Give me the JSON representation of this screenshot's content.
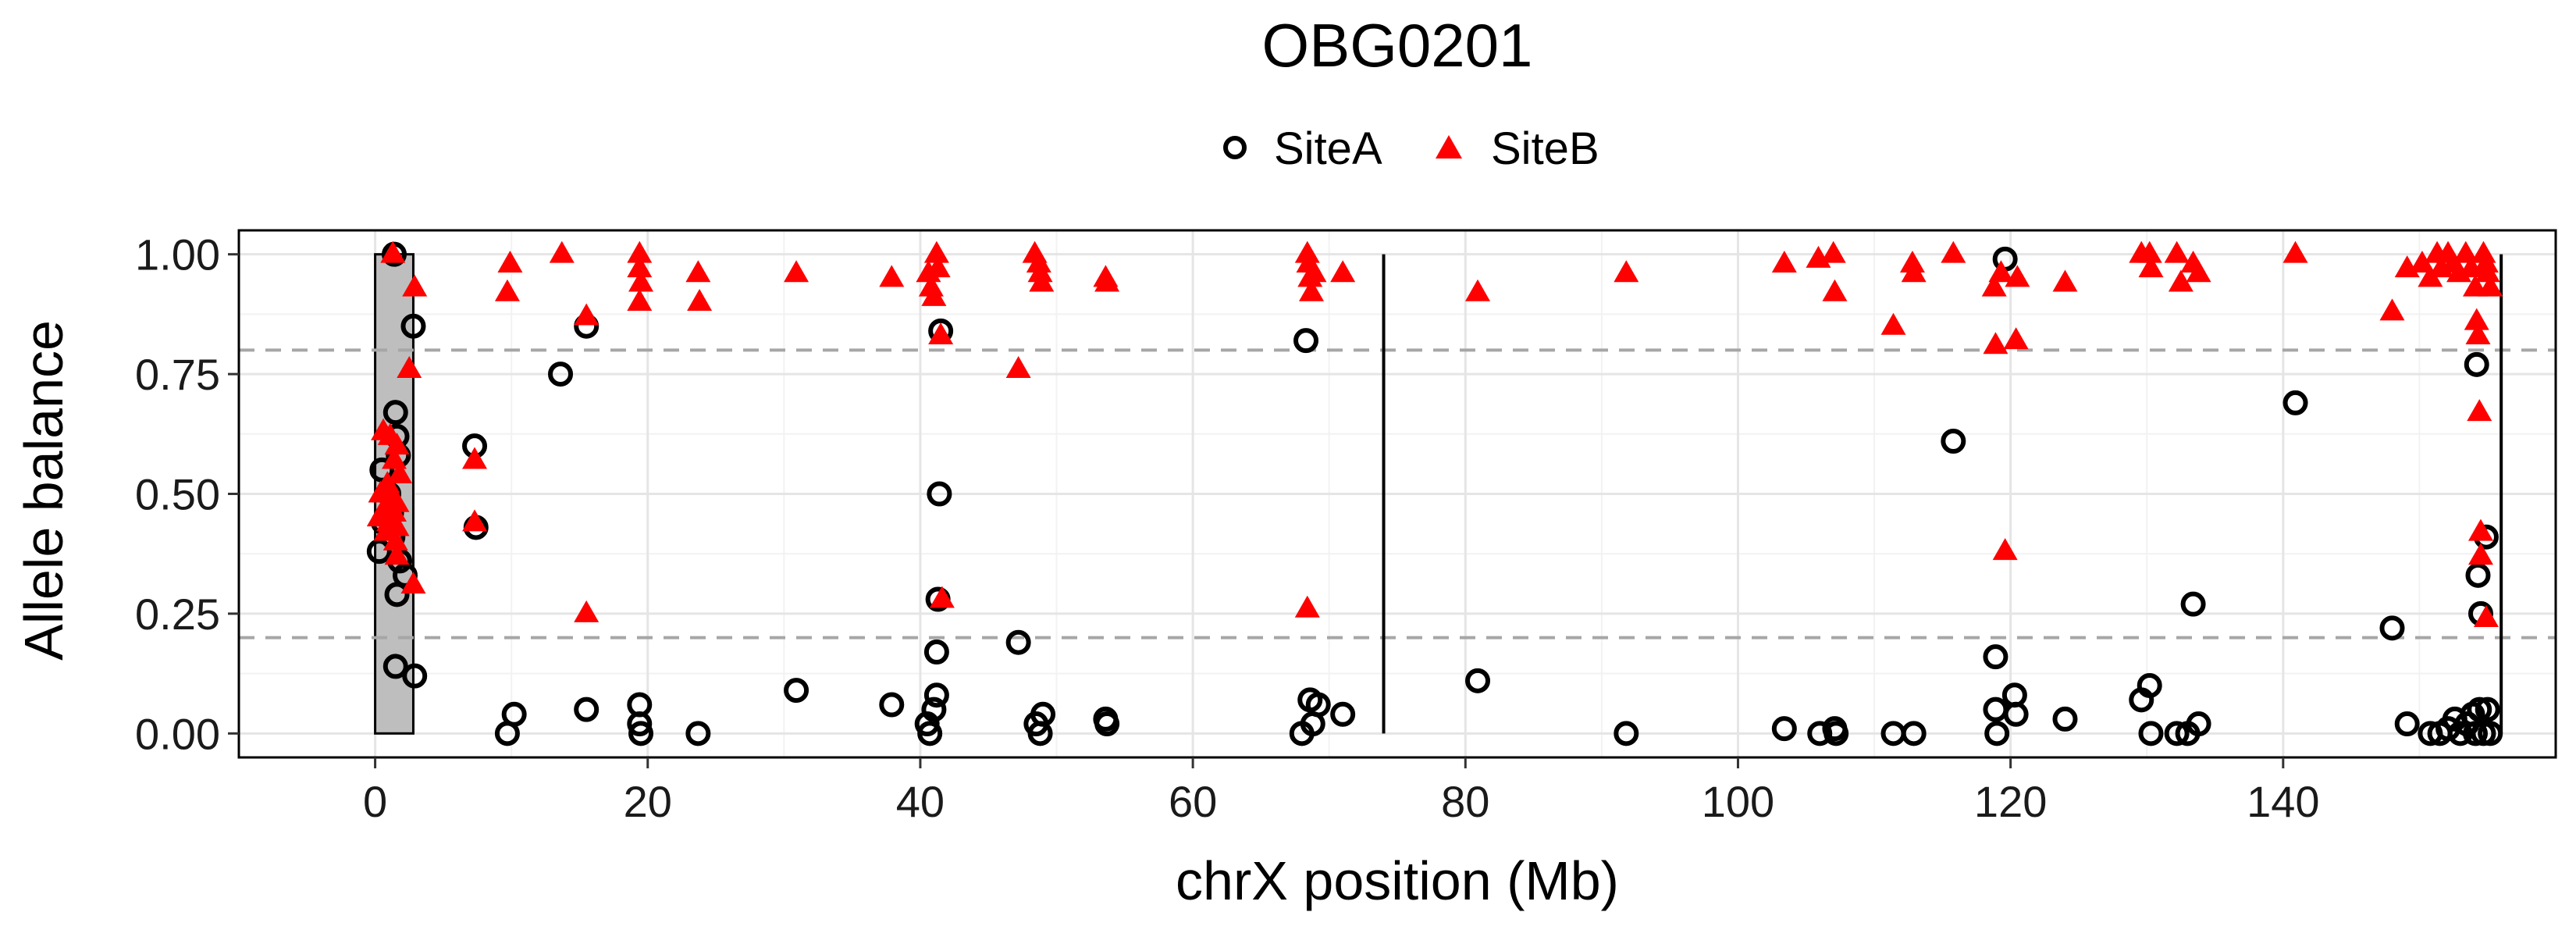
{
  "chart_data": {
    "type": "scatter",
    "title": "OBG0201",
    "xlabel": "chrX position (Mb)",
    "ylabel": "Allele balance",
    "xlim": [
      -10,
      160
    ],
    "ylim": [
      -0.05,
      1.05
    ],
    "xticks": [
      0,
      20,
      40,
      60,
      80,
      100,
      120,
      140
    ],
    "xtick_labels": [
      "0",
      "20",
      "40",
      "60",
      "80",
      "100",
      "120",
      "140"
    ],
    "yticks": [
      0,
      0.25,
      0.5,
      0.75,
      1.0
    ],
    "ytick_labels": [
      "0.00",
      "0.25",
      "0.50",
      "0.75",
      "1.00"
    ],
    "grid": true,
    "legend_position": "top",
    "colors": {
      "SiteA": "#000000",
      "SiteB": "#ff0000",
      "reference": "#a6a6a6",
      "region_fill": "#bebebe"
    },
    "reference_lines": {
      "horizontal": [
        0.2,
        0.8
      ],
      "vertical": [
        74,
        156
      ]
    },
    "shaded_region": {
      "x": [
        0,
        2.8
      ],
      "y": [
        0,
        1.0
      ]
    },
    "series": [
      {
        "name": "SiteA",
        "marker": "open-circle",
        "points": [
          [
            1.4,
            1.0
          ],
          [
            2.8,
            0.85
          ],
          [
            1.5,
            0.67
          ],
          [
            1.6,
            0.62
          ],
          [
            1.7,
            0.58
          ],
          [
            0.5,
            0.55
          ],
          [
            1.0,
            0.5
          ],
          [
            1.2,
            0.46
          ],
          [
            0.6,
            0.44
          ],
          [
            1.3,
            0.41
          ],
          [
            0.3,
            0.38
          ],
          [
            1.8,
            0.36
          ],
          [
            2.2,
            0.33
          ],
          [
            1.6,
            0.29
          ],
          [
            1.5,
            0.14
          ],
          [
            2.9,
            0.12
          ],
          [
            7.3,
            0.6
          ],
          [
            7.4,
            0.43
          ],
          [
            9.7,
            0.0
          ],
          [
            10.2,
            0.04
          ],
          [
            13.6,
            0.75
          ],
          [
            15.5,
            0.85
          ],
          [
            15.5,
            0.05
          ],
          [
            19.4,
            0.06
          ],
          [
            19.4,
            0.02
          ],
          [
            19.5,
            0.0
          ],
          [
            23.7,
            0.0
          ],
          [
            30.9,
            0.09
          ],
          [
            37.9,
            0.06
          ],
          [
            40.5,
            0.02
          ],
          [
            40.7,
            0.0
          ],
          [
            41.0,
            0.05
          ],
          [
            41.2,
            0.08
          ],
          [
            41.2,
            0.17
          ],
          [
            41.3,
            0.28
          ],
          [
            41.4,
            0.5
          ],
          [
            41.5,
            0.84
          ],
          [
            47.2,
            0.19
          ],
          [
            48.5,
            0.02
          ],
          [
            48.8,
            0.0
          ],
          [
            49.0,
            0.04
          ],
          [
            53.6,
            0.03
          ],
          [
            53.7,
            0.02
          ],
          [
            68.0,
            0.0
          ],
          [
            68.3,
            0.82
          ],
          [
            68.6,
            0.07
          ],
          [
            68.8,
            0.02
          ],
          [
            69.2,
            0.06
          ],
          [
            71.0,
            0.04
          ],
          [
            80.9,
            0.11
          ],
          [
            91.8,
            0.0
          ],
          [
            103.4,
            0.01
          ],
          [
            106.0,
            0.0
          ],
          [
            107.1,
            0.01
          ],
          [
            107.2,
            0.0
          ],
          [
            111.4,
            0.0
          ],
          [
            112.9,
            0.0
          ],
          [
            115.8,
            0.61
          ],
          [
            118.9,
            0.16
          ],
          [
            118.9,
            0.05
          ],
          [
            119.0,
            0.0
          ],
          [
            119.6,
            0.99
          ],
          [
            120.3,
            0.08
          ],
          [
            120.4,
            0.04
          ],
          [
            124.0,
            0.03
          ],
          [
            129.6,
            0.07
          ],
          [
            130.2,
            0.1
          ],
          [
            130.3,
            0.0
          ],
          [
            132.2,
            0.0
          ],
          [
            133.0,
            0.0
          ],
          [
            133.4,
            0.27
          ],
          [
            133.8,
            0.02
          ],
          [
            140.9,
            0.69
          ],
          [
            148.0,
            0.22
          ],
          [
            149.1,
            0.02
          ],
          [
            150.8,
            0.0
          ],
          [
            151.5,
            0.0
          ],
          [
            152.1,
            0.01
          ],
          [
            152.6,
            0.03
          ],
          [
            153.0,
            0.0
          ],
          [
            153.5,
            0.02
          ],
          [
            153.9,
            0.04
          ],
          [
            154.1,
            0.0
          ],
          [
            154.2,
            0.77
          ],
          [
            154.3,
            0.33
          ],
          [
            154.4,
            0.05
          ],
          [
            154.5,
            0.25
          ],
          [
            154.7,
            0.0
          ],
          [
            154.9,
            0.41
          ],
          [
            155.0,
            0.05
          ],
          [
            155.2,
            0.0
          ]
        ]
      },
      {
        "name": "SiteB",
        "marker": "filled-triangle",
        "points": [
          [
            1.3,
            1.0
          ],
          [
            2.9,
            0.93
          ],
          [
            2.5,
            0.76
          ],
          [
            0.6,
            0.63
          ],
          [
            1.1,
            0.62
          ],
          [
            1.6,
            0.6
          ],
          [
            1.4,
            0.57
          ],
          [
            1.8,
            0.54
          ],
          [
            0.9,
            0.52
          ],
          [
            0.4,
            0.5
          ],
          [
            1.2,
            0.49
          ],
          [
            1.6,
            0.48
          ],
          [
            0.7,
            0.47
          ],
          [
            1.4,
            0.46
          ],
          [
            0.3,
            0.45
          ],
          [
            1.0,
            0.44
          ],
          [
            1.6,
            0.43
          ],
          [
            0.8,
            0.42
          ],
          [
            1.5,
            0.4
          ],
          [
            1.6,
            0.37
          ],
          [
            2.8,
            0.31
          ],
          [
            7.3,
            0.57
          ],
          [
            7.3,
            0.44
          ],
          [
            9.9,
            0.98
          ],
          [
            9.7,
            0.92
          ],
          [
            13.7,
            1.0
          ],
          [
            15.5,
            0.87
          ],
          [
            15.5,
            0.25
          ],
          [
            19.4,
            1.0
          ],
          [
            19.4,
            0.97
          ],
          [
            19.5,
            0.94
          ],
          [
            19.4,
            0.9
          ],
          [
            23.7,
            0.96
          ],
          [
            23.8,
            0.9
          ],
          [
            30.9,
            0.96
          ],
          [
            37.9,
            0.95
          ],
          [
            40.6,
            0.96
          ],
          [
            40.8,
            0.93
          ],
          [
            41.0,
            0.91
          ],
          [
            41.2,
            1.0
          ],
          [
            41.3,
            0.97
          ],
          [
            41.5,
            0.83
          ],
          [
            41.6,
            0.28
          ],
          [
            47.2,
            0.76
          ],
          [
            48.4,
            1.0
          ],
          [
            48.7,
            0.98
          ],
          [
            48.8,
            0.96
          ],
          [
            48.9,
            0.94
          ],
          [
            53.6,
            0.95
          ],
          [
            53.7,
            0.94
          ],
          [
            68.4,
            1.0
          ],
          [
            68.5,
            0.98
          ],
          [
            68.6,
            0.95
          ],
          [
            68.7,
            0.92
          ],
          [
            68.9,
            0.96
          ],
          [
            68.4,
            0.26
          ],
          [
            71.0,
            0.96
          ],
          [
            80.9,
            0.92
          ],
          [
            91.8,
            0.96
          ],
          [
            103.4,
            0.98
          ],
          [
            105.9,
            0.99
          ],
          [
            107.0,
            1.0
          ],
          [
            107.1,
            0.92
          ],
          [
            111.4,
            0.85
          ],
          [
            112.8,
            0.98
          ],
          [
            112.9,
            0.96
          ],
          [
            115.8,
            1.0
          ],
          [
            118.8,
            0.93
          ],
          [
            118.9,
            0.81
          ],
          [
            119.3,
            0.96
          ],
          [
            119.6,
            0.38
          ],
          [
            120.4,
            0.82
          ],
          [
            120.5,
            0.95
          ],
          [
            124.0,
            0.94
          ],
          [
            129.6,
            1.0
          ],
          [
            130.2,
            1.0
          ],
          [
            130.3,
            0.97
          ],
          [
            132.2,
            1.0
          ],
          [
            132.5,
            0.94
          ],
          [
            133.4,
            0.98
          ],
          [
            133.8,
            0.96
          ],
          [
            140.9,
            1.0
          ],
          [
            148.0,
            0.88
          ],
          [
            149.1,
            0.97
          ],
          [
            150.2,
            0.98
          ],
          [
            150.8,
            0.95
          ],
          [
            151.3,
            1.0
          ],
          [
            151.6,
            0.97
          ],
          [
            152.1,
            1.0
          ],
          [
            152.5,
            0.98
          ],
          [
            152.9,
            0.96
          ],
          [
            153.4,
            1.0
          ],
          [
            153.8,
            0.97
          ],
          [
            154.1,
            0.93
          ],
          [
            154.2,
            0.86
          ],
          [
            154.3,
            0.83
          ],
          [
            154.4,
            0.67
          ],
          [
            154.5,
            0.42
          ],
          [
            154.5,
            0.37
          ],
          [
            154.7,
            1.0
          ],
          [
            154.9,
            0.98
          ],
          [
            155.0,
            0.96
          ],
          [
            155.2,
            0.93
          ],
          [
            154.9,
            0.24
          ]
        ]
      }
    ]
  }
}
